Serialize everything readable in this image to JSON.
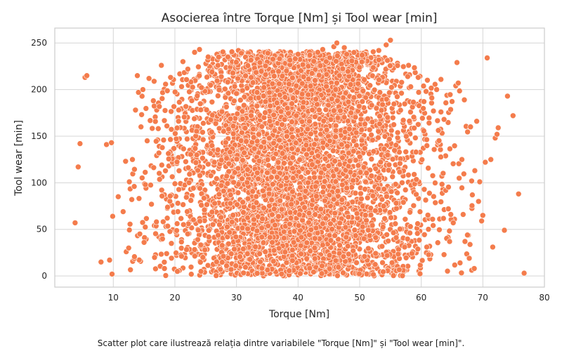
{
  "caption": "Scatter plot care ilustrează relația dintre variabilele \"Torque [Nm]\" și \"Tool wear [min]\".",
  "colors": {
    "point": "#f47c4c",
    "point_edge": "#ffffff",
    "grid": "#d5d5d5",
    "frame": "#cccccc",
    "background": "#ffffff"
  },
  "chart_data": {
    "type": "scatter",
    "title": "Asocierea între Torque [Nm] și Tool wear [min]",
    "xlabel": "Torque [Nm]",
    "ylabel": "Tool wear [min]",
    "xlim": [
      0.5,
      80
    ],
    "ylim": [
      -12,
      266
    ],
    "xticks": [
      10,
      20,
      30,
      40,
      50,
      60,
      70,
      80
    ],
    "yticks": [
      0,
      50,
      100,
      150,
      200,
      250
    ],
    "grid": true,
    "legend": "none",
    "dense_region_note": "bulk of points span Torque ~14–68 Nm and Tool wear 0–240 min, densest near 40 Nm",
    "points": [
      [
        3.8,
        57
      ],
      [
        4.3,
        117
      ],
      [
        4.6,
        142
      ],
      [
        5.4,
        213
      ],
      [
        5.7,
        215
      ],
      [
        8.0,
        15
      ],
      [
        8.9,
        141
      ],
      [
        9.4,
        17
      ],
      [
        9.7,
        143
      ],
      [
        9.8,
        2
      ],
      [
        9.9,
        64
      ],
      [
        10.8,
        85
      ],
      [
        11.6,
        69
      ],
      [
        12.0,
        123
      ],
      [
        12.1,
        26
      ],
      [
        12.5,
        30
      ],
      [
        12.6,
        101
      ],
      [
        13.0,
        82
      ],
      [
        13.1,
        125
      ],
      [
        13.4,
        96
      ],
      [
        13.6,
        178
      ],
      [
        13.9,
        215
      ],
      [
        14.3,
        45
      ],
      [
        14.5,
        160
      ],
      [
        14.8,
        200
      ],
      [
        15.0,
        36
      ],
      [
        15.2,
        98
      ],
      [
        15.5,
        145
      ],
      [
        15.8,
        212
      ],
      [
        16.2,
        77
      ],
      [
        16.5,
        188
      ],
      [
        17.0,
        58
      ],
      [
        17.4,
        132
      ],
      [
        17.8,
        226
      ],
      [
        18.3,
        8
      ],
      [
        18.7,
        161
      ],
      [
        19.3,
        213
      ],
      [
        20.0,
        99
      ],
      [
        20.6,
        166
      ],
      [
        21.3,
        230
      ],
      [
        22.1,
        222
      ],
      [
        23.2,
        240
      ],
      [
        24.0,
        243
      ],
      [
        25.4,
        235
      ],
      [
        27.0,
        226
      ],
      [
        28.6,
        235
      ],
      [
        30.3,
        242
      ],
      [
        30.8,
        239
      ],
      [
        33.8,
        229
      ],
      [
        35.1,
        239
      ],
      [
        37.0,
        233
      ],
      [
        40.0,
        238
      ],
      [
        41.9,
        237
      ],
      [
        43.2,
        240
      ],
      [
        44.0,
        243
      ],
      [
        45.8,
        246
      ],
      [
        46.3,
        250
      ],
      [
        47.5,
        245
      ],
      [
        50.4,
        237
      ],
      [
        53.1,
        242
      ],
      [
        54.3,
        248
      ],
      [
        55.0,
        253
      ],
      [
        57.8,
        214
      ],
      [
        58.3,
        203
      ],
      [
        59.5,
        213
      ],
      [
        61.0,
        210
      ],
      [
        62.5,
        200
      ],
      [
        63.2,
        176
      ],
      [
        63.7,
        168
      ],
      [
        64.4,
        72
      ],
      [
        64.6,
        37
      ],
      [
        64.8,
        66
      ],
      [
        65.2,
        57
      ],
      [
        65.6,
        204
      ],
      [
        65.8,
        229
      ],
      [
        66.0,
        207
      ],
      [
        66.3,
        14
      ],
      [
        66.6,
        125
      ],
      [
        66.8,
        66
      ],
      [
        67.0,
        189
      ],
      [
        67.1,
        37
      ],
      [
        67.5,
        44
      ],
      [
        67.8,
        19
      ],
      [
        68.0,
        160
      ],
      [
        68.3,
        87
      ],
      [
        68.6,
        8
      ],
      [
        68.7,
        113
      ],
      [
        69.0,
        166
      ],
      [
        69.3,
        80
      ],
      [
        69.5,
        101
      ],
      [
        69.8,
        59
      ],
      [
        70.0,
        65
      ],
      [
        70.4,
        122
      ],
      [
        70.7,
        234
      ],
      [
        71.3,
        125
      ],
      [
        71.6,
        31
      ],
      [
        72.0,
        148
      ],
      [
        72.3,
        152
      ],
      [
        72.5,
        159
      ],
      [
        73.5,
        49
      ],
      [
        74.0,
        193
      ],
      [
        74.9,
        172
      ],
      [
        75.8,
        88
      ],
      [
        76.7,
        3
      ]
    ]
  }
}
